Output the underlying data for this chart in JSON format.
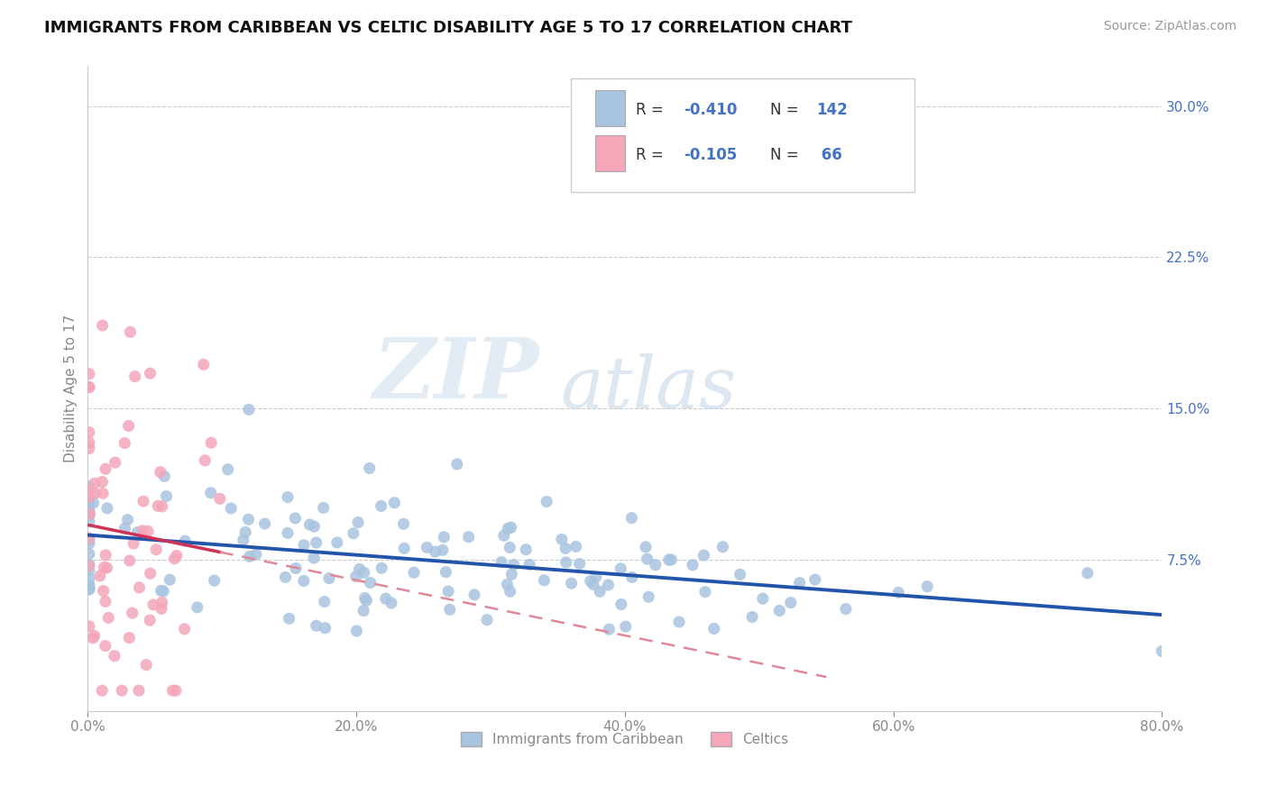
{
  "title": "IMMIGRANTS FROM CARIBBEAN VS CELTIC DISABILITY AGE 5 TO 17 CORRELATION CHART",
  "source": "Source: ZipAtlas.com",
  "ylabel": "Disability Age 5 to 17",
  "xlim": [
    0.0,
    0.8
  ],
  "ylim": [
    0.0,
    0.32
  ],
  "xtick_vals": [
    0.0,
    0.2,
    0.4,
    0.6,
    0.8
  ],
  "xtick_labels": [
    "0.0%",
    "20.0%",
    "40.0%",
    "60.0%",
    "80.0%"
  ],
  "yticks_right": [
    0.075,
    0.15,
    0.225,
    0.3
  ],
  "ytick_labels_right": [
    "7.5%",
    "15.0%",
    "22.5%",
    "30.0%"
  ],
  "caribbean_color": "#a8c4e0",
  "celtic_color": "#f4a7b9",
  "caribbean_line_color": "#2255aa",
  "celtic_line_solid_color": "#cc3355",
  "celtic_line_dashed_color": "#e08898",
  "R_caribbean": -0.41,
  "N_caribbean": 142,
  "R_celtic": -0.105,
  "N_celtic": 66,
  "watermark_zip": "ZIP",
  "watermark_atlas": "atlas",
  "background_color": "#ffffff",
  "legend_label_caribbean": "Immigrants from Caribbean",
  "legend_label_celtic": "Celtics",
  "grid_color": "#cccccc",
  "legend_text_color": "#4472c4",
  "label_color": "#333333",
  "tick_color": "#888888"
}
